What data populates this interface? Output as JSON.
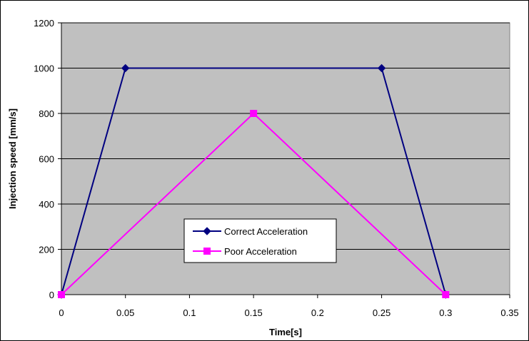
{
  "chart_data": {
    "type": "line",
    "title": "",
    "xlabel": "Time[s]",
    "ylabel": "Injection speed [mm/s]",
    "xlim": [
      0,
      0.35
    ],
    "ylim": [
      0,
      1200
    ],
    "xticks": [
      0,
      0.05,
      0.1,
      0.15,
      0.2,
      0.25,
      0.3,
      0.35
    ],
    "xtick_labels": [
      "0",
      "0.05",
      "0.1",
      "0.15",
      "0.2",
      "0.25",
      "0.3",
      "0.35"
    ],
    "yticks": [
      0,
      200,
      400,
      600,
      800,
      1000,
      1200
    ],
    "ytick_labels": [
      "0",
      "200",
      "400",
      "600",
      "800",
      "1000",
      "1200"
    ],
    "grid": "horizontal",
    "plot_background": "#c0c0c0",
    "legend_position": "center-bottom",
    "series": [
      {
        "name": "Correct Acceleration",
        "color": "#000080",
        "marker": "diamond",
        "x": [
          0,
          0.05,
          0.25,
          0.3
        ],
        "y": [
          0,
          1000,
          1000,
          0
        ]
      },
      {
        "name": "Poor Acceleration",
        "color": "#ff00ff",
        "marker": "square",
        "x": [
          0,
          0.15,
          0.3
        ],
        "y": [
          0,
          800,
          0
        ]
      }
    ]
  }
}
